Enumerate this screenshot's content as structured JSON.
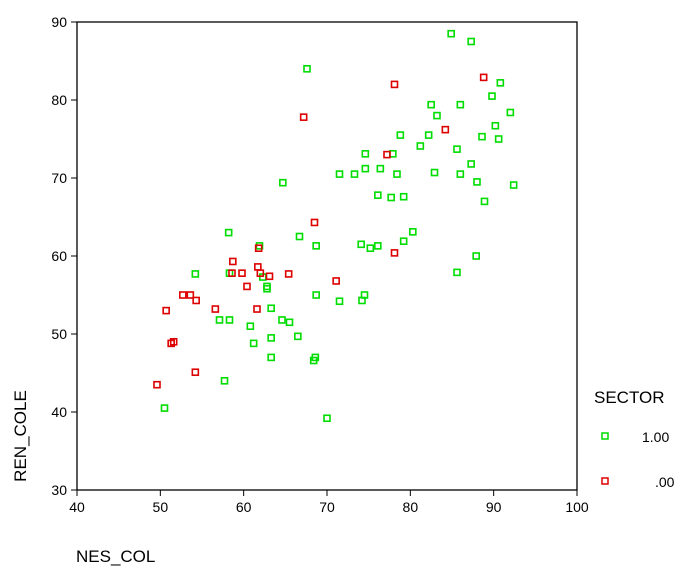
{
  "colors": {
    "green": "#00dd00",
    "red": "#dd0000",
    "frame": "#000000"
  },
  "chart_data": {
    "type": "scatter",
    "xlabel": "NES_COL",
    "ylabel": "REN_COLE",
    "xlim": [
      40,
      100
    ],
    "ylim": [
      30,
      90
    ],
    "xticks": [
      40,
      50,
      60,
      70,
      80,
      90,
      100
    ],
    "yticks": [
      30,
      40,
      50,
      60,
      70,
      80,
      90
    ],
    "grid": false,
    "legend": {
      "title": "SECTOR",
      "placement": "right"
    },
    "series": [
      {
        "name": "1.00",
        "color": "#00dd00",
        "marker": "hollow-square",
        "x": [
          84.9,
          87.3,
          67.6,
          90.8,
          89.8,
          92.0,
          82.5,
          86.0,
          83.2,
          90.2,
          78.8,
          82.2,
          85.6,
          88.6,
          90.6,
          81.2,
          74.6,
          77.9,
          87.3,
          76.4,
          78.4,
          73.3,
          74.6,
          71.5,
          86.0,
          88.0,
          92.4,
          82.9,
          64.7,
          79.2,
          76.1,
          77.7,
          88.9,
          80.3,
          66.7,
          79.2,
          58.2,
          68.7,
          61.9,
          76.1,
          75.2,
          74.1,
          87.9,
          85.6,
          62.3,
          54.2,
          58.3,
          62.8,
          62.8,
          68.7,
          74.5,
          74.2,
          71.5,
          63.3,
          57.1,
          58.3,
          64.6,
          65.5,
          60.8,
          66.5,
          63.3,
          61.2,
          63.3,
          68.6,
          68.4,
          57.7,
          50.5,
          70.0
        ],
        "y": [
          88.5,
          87.5,
          84.0,
          82.2,
          80.5,
          78.4,
          79.4,
          79.4,
          78.0,
          76.7,
          75.5,
          75.5,
          73.7,
          75.3,
          75.0,
          74.1,
          73.1,
          73.1,
          71.8,
          71.2,
          70.5,
          70.5,
          71.2,
          70.5,
          70.5,
          69.5,
          69.1,
          70.7,
          69.4,
          67.6,
          67.8,
          67.5,
          67.0,
          63.1,
          62.5,
          61.9,
          63.0,
          61.3,
          61.3,
          61.3,
          61.0,
          61.5,
          60.0,
          57.9,
          57.3,
          57.7,
          57.8,
          56.1,
          55.8,
          55.0,
          55.0,
          54.3,
          54.2,
          53.3,
          51.8,
          51.8,
          51.8,
          51.5,
          51.0,
          49.7,
          49.5,
          48.8,
          47.0,
          47.0,
          46.6,
          44.0,
          40.5,
          39.2
        ]
      },
      {
        "name": ".00",
        "color": "#dd0000",
        "marker": "hollow-square",
        "x": [
          88.8,
          78.1,
          67.2,
          84.2,
          77.2,
          68.5,
          61.8,
          61.7,
          58.7,
          62.0,
          58.6,
          59.8,
          65.4,
          63.1,
          71.1,
          60.4,
          52.7,
          53.6,
          54.3,
          56.6,
          61.6,
          50.7,
          51.6,
          51.3,
          54.2,
          49.6,
          78.1
        ],
        "y": [
          82.9,
          82.0,
          77.8,
          76.2,
          73.0,
          64.3,
          61.0,
          58.6,
          59.3,
          57.8,
          57.8,
          57.8,
          57.7,
          57.4,
          56.8,
          56.1,
          55.0,
          55.0,
          54.3,
          53.2,
          53.2,
          53.0,
          49.0,
          48.8,
          45.1,
          43.5,
          60.4
        ]
      }
    ]
  }
}
